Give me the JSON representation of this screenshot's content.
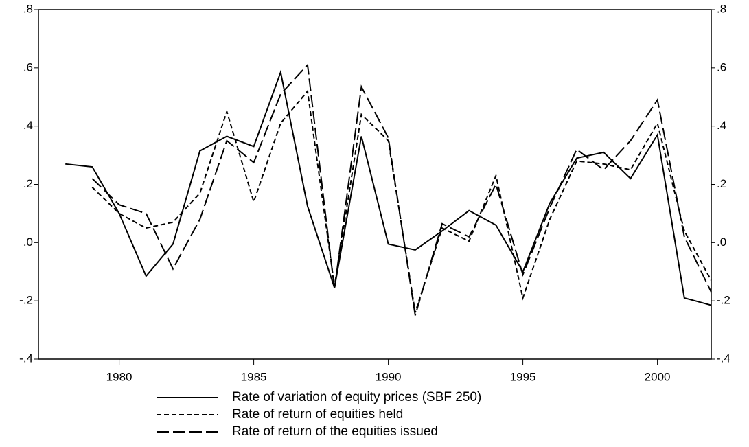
{
  "chart_data": {
    "type": "line",
    "x": [
      1978,
      1979,
      1980,
      1981,
      1982,
      1983,
      1984,
      1985,
      1986,
      1987,
      1988,
      1989,
      1990,
      1991,
      1992,
      1993,
      1994,
      1995,
      1996,
      1997,
      1998,
      1999,
      2000,
      2001,
      2002
    ],
    "series": [
      {
        "name": "Rate of variation of equity prices (SBF 250)",
        "color": "#000000",
        "dash": "solid",
        "values": [
          0.27,
          0.26,
          0.1,
          -0.115,
          -0.005,
          0.315,
          0.365,
          0.33,
          0.585,
          0.125,
          -0.155,
          0.365,
          -0.005,
          -0.025,
          0.04,
          0.11,
          0.06,
          -0.1,
          0.135,
          0.29,
          0.31,
          0.22,
          0.37,
          -0.19,
          -0.215
        ]
      },
      {
        "name": "Rate of return of equities held",
        "color": "#000000",
        "dash": "short",
        "values": [
          null,
          0.19,
          0.1,
          0.05,
          0.07,
          0.17,
          0.45,
          0.14,
          0.41,
          0.52,
          -0.15,
          0.44,
          0.35,
          -0.24,
          0.05,
          0.005,
          0.23,
          -0.19,
          0.08,
          0.28,
          0.27,
          0.25,
          0.41,
          0.04,
          -0.13
        ]
      },
      {
        "name": "Rate of return of the equities issued",
        "color": "#000000",
        "dash": "long",
        "values": [
          null,
          0.22,
          0.13,
          0.1,
          -0.09,
          0.08,
          0.35,
          0.275,
          0.51,
          0.61,
          -0.16,
          0.535,
          0.36,
          -0.25,
          0.065,
          0.02,
          0.2,
          -0.11,
          0.12,
          0.32,
          0.25,
          0.35,
          0.49,
          0.02,
          -0.17
        ]
      }
    ],
    "xlim": [
      1977,
      2002
    ],
    "xticks": [
      1980,
      1985,
      1990,
      1995,
      2000
    ],
    "ylim": [
      -0.4,
      0.8
    ],
    "yticks": [
      {
        "value": -0.4,
        "label": "-.4"
      },
      {
        "value": -0.2,
        "label": "-.2"
      },
      {
        "value": 0,
        "label": ".0"
      },
      {
        "value": 0.2,
        "label": ".2"
      },
      {
        "value": 0.4,
        "label": ".4"
      },
      {
        "value": 0.6,
        "label": ".6"
      },
      {
        "value": 0.8,
        "label": ".8"
      }
    ],
    "legend": "bottom"
  }
}
